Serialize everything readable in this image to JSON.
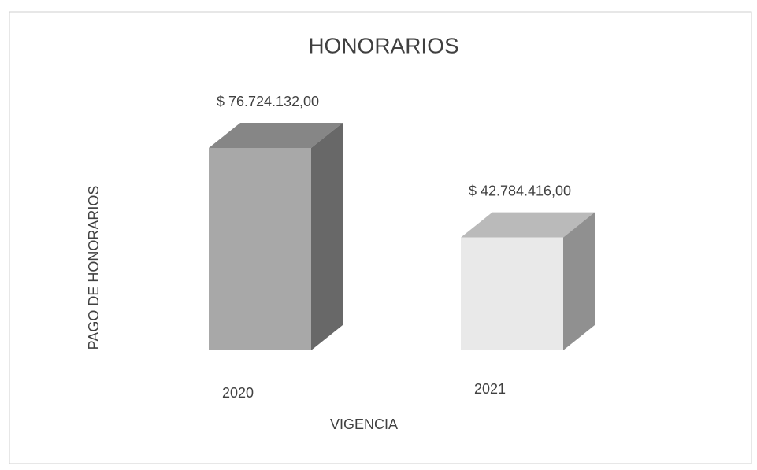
{
  "chart_data": {
    "type": "bar3d",
    "title": "HONORARIOS",
    "categories": [
      "2020",
      "2021"
    ],
    "values": [
      76724132,
      42784416
    ],
    "value_labels": [
      "$ 76.724.132,00",
      "$ 42.784.416,00"
    ],
    "colors": [
      "#a8a8a8",
      "#e9e9e9"
    ],
    "x_label": "VIGENCIA",
    "y_label": "PAGO DE HONORARIOS"
  }
}
